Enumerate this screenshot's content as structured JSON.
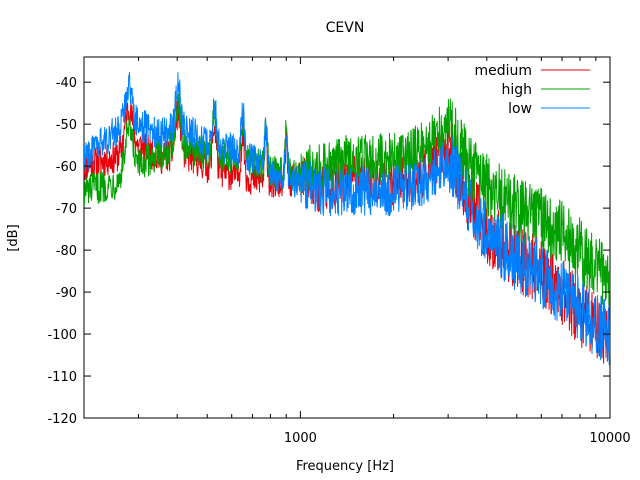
{
  "chart_data": {
    "type": "line",
    "title": "CEVN",
    "xlabel": "Frequency [Hz]",
    "ylabel": "[dB]",
    "xscale": "log",
    "xlim": [
      200,
      10000
    ],
    "ylim": [
      -120,
      -34
    ],
    "x_ticks": [
      {
        "value": 1000,
        "label": "1000"
      },
      {
        "value": 10000,
        "label": "10000"
      }
    ],
    "y_ticks": [
      {
        "value": -40,
        "label": "-40"
      },
      {
        "value": -50,
        "label": "-50"
      },
      {
        "value": -60,
        "label": "-60"
      },
      {
        "value": -70,
        "label": "-70"
      },
      {
        "value": -80,
        "label": "-80"
      },
      {
        "value": -90,
        "label": "-90"
      },
      {
        "value": -100,
        "label": "-100"
      },
      {
        "value": -110,
        "label": "-110"
      },
      {
        "value": -120,
        "label": "-120"
      }
    ],
    "grid": false,
    "legend_position": "top-right",
    "series": [
      {
        "name": "medium",
        "color": "#e8000b",
        "x": [
          200,
          250,
          300,
          350,
          400,
          450,
          500,
          600,
          700,
          800,
          900,
          1000,
          1200,
          1500,
          2000,
          2500,
          3000,
          3500,
          4000,
          5000,
          6000,
          7000,
          8000,
          9000,
          10000
        ],
        "y": [
          -60,
          -58,
          -55,
          -58,
          -57,
          -58,
          -60,
          -62,
          -63,
          -64,
          -64,
          -63,
          -66,
          -62,
          -64,
          -62,
          -55,
          -68,
          -76,
          -82,
          -85,
          -90,
          -95,
          -98,
          -100
        ]
      },
      {
        "name": "high",
        "color": "#00a000",
        "x": [
          200,
          250,
          300,
          350,
          400,
          450,
          500,
          600,
          700,
          800,
          900,
          1000,
          1200,
          1500,
          2000,
          2500,
          3000,
          3500,
          4000,
          5000,
          6000,
          7000,
          8000,
          9000,
          10000
        ],
        "y": [
          -66,
          -64,
          -60,
          -57,
          -55,
          -56,
          -57,
          -58,
          -59,
          -61,
          -62,
          -61,
          -60,
          -58,
          -58,
          -55,
          -50,
          -60,
          -65,
          -70,
          -73,
          -76,
          -80,
          -84,
          -86
        ]
      },
      {
        "name": "low",
        "color": "#0080ff",
        "x": [
          200,
          250,
          300,
          350,
          400,
          450,
          500,
          600,
          700,
          800,
          900,
          1000,
          1200,
          1500,
          2000,
          2500,
          3000,
          3500,
          4000,
          5000,
          6000,
          7000,
          8000,
          9000,
          10000
        ],
        "y": [
          -58,
          -52,
          -50,
          -52,
          -51,
          -52,
          -55,
          -56,
          -58,
          -62,
          -63,
          -64,
          -66,
          -66,
          -66,
          -64,
          -58,
          -70,
          -76,
          -82,
          -86,
          -90,
          -94,
          -98,
          -100
        ]
      }
    ]
  }
}
